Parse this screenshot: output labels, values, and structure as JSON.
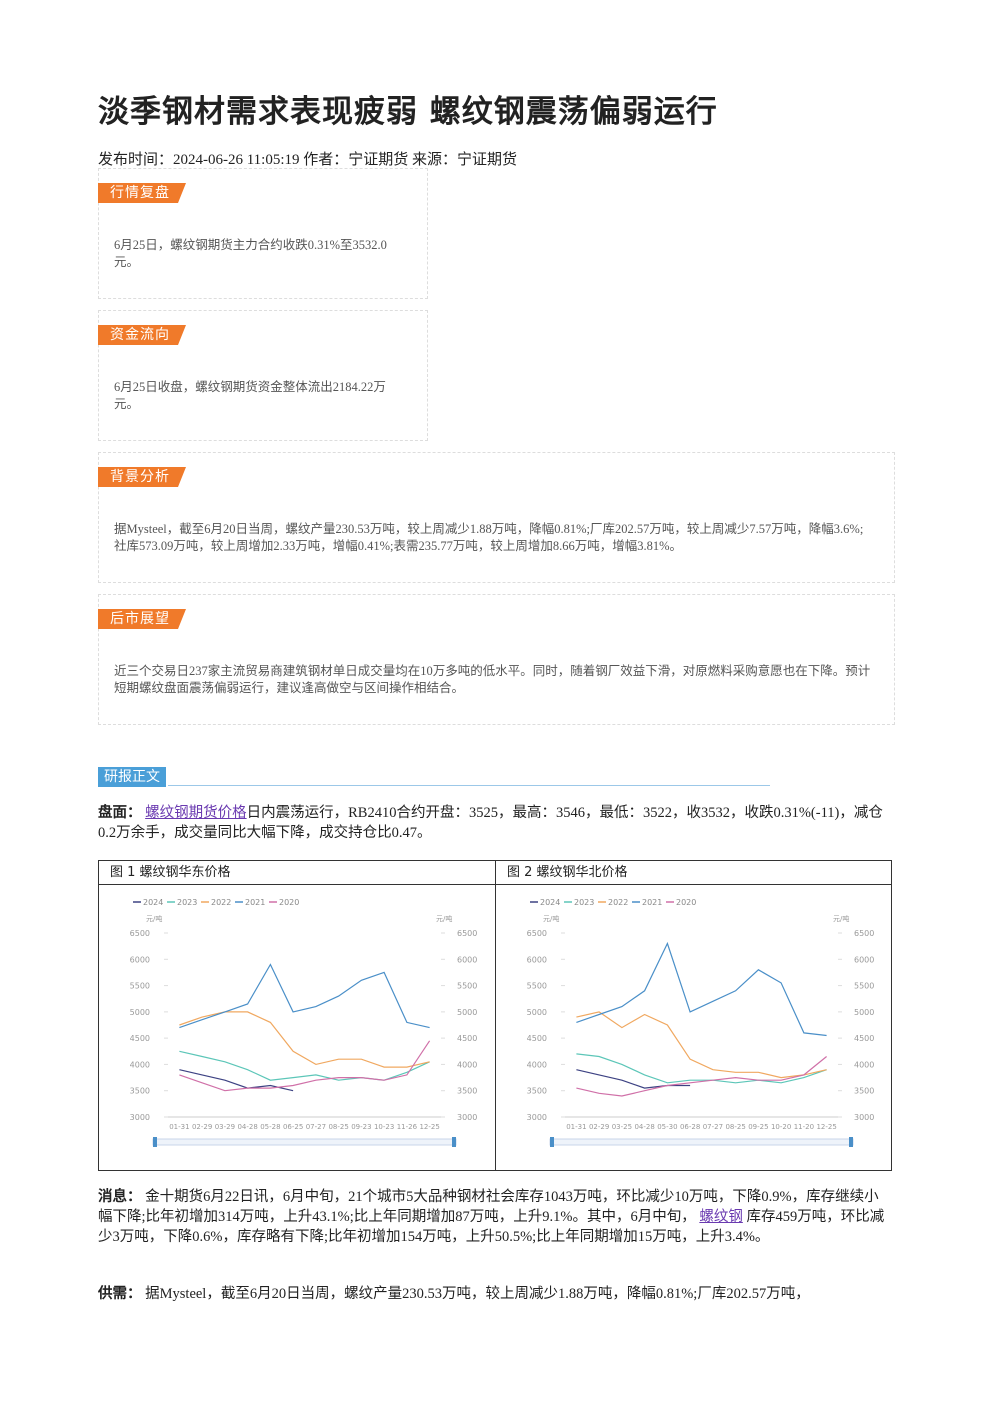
{
  "header": {
    "title": "淡季钢材需求表现疲弱 螺纹钢震荡偏弱运行",
    "meta": "发布时间：2024-06-26 11:05:19 作者：宁证期货 来源：宁证期货"
  },
  "boxes": [
    {
      "tag": "行情复盘",
      "text": "6月25日，螺纹钢期货主力合约收跌0.31%至3532.0元。"
    },
    {
      "tag": "资金流向",
      "text": "6月25日收盘，螺纹钢期货资金整体流出2184.22万元。"
    },
    {
      "tag": "背景分析",
      "text": "据Mysteel，截至6月20日当周，螺纹产量230.53万吨，较上周减少1.88万吨，降幅0.81%;厂库202.57万吨，较上周减少7.57万吨，降幅3.6%;社库573.09万吨，较上周增加2.33万吨，增幅0.41%;表需235.77万吨，较上周增加8.66万吨，增幅3.81%。"
    },
    {
      "tag": "后市展望",
      "text": "近三个交易日237家主流贸易商建筑钢材单日成交量均在10万多吨的低水平。同时，随着钢厂效益下滑，对原燃料采购意愿也在下降。预计短期螺纹盘面震荡偏弱运行，建议逢高做空与区间操作相结合。"
    }
  ],
  "section": {
    "tag": "研报正文"
  },
  "paragraphs": [
    {
      "label": "盘面：",
      "link": "螺纹钢期货价格",
      "after": "日内震荡运行，RB2410合约开盘：3525，最高：3546，最低：3522，收3532，收跌0.31%(-11)，减仓0.2万余手，成交量同比大幅下降，成交持仓比0.47。"
    },
    {
      "label": "消息：",
      "before": "金十期货6月22日讯，6月中旬，21个城市5大品种钢材社会库存1043万吨，环比减少10万吨，下降0.9%，库存继续小幅下降;比年初增加314万吨，上升43.1%;比上年同期增加87万吨，上升9.1%。其中，6月中旬，",
      "link": "螺纹钢",
      "after": "库存459万吨，环比减少3万吨，下降0.6%，库存略有下降;比年初增加154万吨，上升50.5%;比上年同期增加15万吨，上升3.4%。"
    },
    {
      "label": "供需：",
      "before": "据Mysteel，截至6月20日当周，螺纹产量230.53万吨，较上周减少1.88万吨，降幅0.81%;厂库202.57万吨，"
    }
  ],
  "chart_data": [
    {
      "type": "line",
      "title": "图 1 螺纹钢华东价格",
      "ylabel": "元/吨",
      "y2label": "元/吨",
      "categories": [
        "01-31",
        "02-29",
        "03-29",
        "04-28",
        "05-28",
        "06-25",
        "07-27",
        "08-25",
        "09-23",
        "10-23",
        "11-26",
        "12-25"
      ],
      "ylim": [
        3000,
        6500
      ],
      "yticks": [
        3000,
        3500,
        4000,
        4500,
        5000,
        5500,
        6000,
        6500
      ],
      "y2lim": [
        3000,
        6500
      ],
      "y2ticks": [
        3000,
        3500,
        4000,
        4500,
        5000,
        5500,
        6000,
        6500
      ],
      "series": [
        {
          "name": "2024",
          "color": "#3d4283",
          "values": [
            3900,
            3800,
            3700,
            3550,
            3600,
            3500,
            null,
            null,
            null,
            null,
            null,
            null
          ]
        },
        {
          "name": "2023",
          "color": "#5cc6b8",
          "values": [
            4250,
            4150,
            4050,
            3900,
            3700,
            3750,
            3800,
            3700,
            3750,
            3700,
            3850,
            4050
          ]
        },
        {
          "name": "2022",
          "color": "#f0a860",
          "values": [
            4750,
            4900,
            5000,
            5000,
            4800,
            4250,
            4000,
            4100,
            4100,
            3950,
            3950,
            4050
          ]
        },
        {
          "name": "2021",
          "color": "#4a8fc8",
          "values": [
            4700,
            4850,
            5000,
            5150,
            5900,
            5000,
            5100,
            5300,
            5600,
            5750,
            4800,
            4700
          ]
        },
        {
          "name": "2020",
          "color": "#d070a8",
          "values": [
            3800,
            3650,
            3500,
            3550,
            3550,
            3600,
            3700,
            3750,
            3750,
            3700,
            3800,
            4450
          ]
        }
      ]
    },
    {
      "type": "line",
      "title": "图 2 螺纹钢华北价格",
      "ylabel": "元/吨",
      "y2label": "元/吨",
      "categories": [
        "01-31",
        "02-29",
        "03-25",
        "04-28",
        "05-30",
        "06-28",
        "07-27",
        "08-25",
        "09-25",
        "10-20",
        "11-20",
        "12-25"
      ],
      "ylim": [
        3000,
        6500
      ],
      "yticks": [
        3000,
        3500,
        4000,
        4500,
        5000,
        5500,
        6000,
        6500
      ],
      "y2lim": [
        3000,
        6500
      ],
      "y2ticks": [
        3000,
        3500,
        4000,
        4500,
        5000,
        5500,
        6000,
        6500
      ],
      "series": [
        {
          "name": "2024",
          "color": "#3d4283",
          "values": [
            3900,
            3800,
            3700,
            3550,
            3600,
            3600,
            null,
            null,
            null,
            null,
            null,
            null
          ]
        },
        {
          "name": "2023",
          "color": "#5cc6b8",
          "values": [
            4200,
            4150,
            4000,
            3800,
            3650,
            3700,
            3700,
            3650,
            3700,
            3650,
            3750,
            3900
          ]
        },
        {
          "name": "2022",
          "color": "#f0a860",
          "values": [
            4900,
            5000,
            4700,
            4950,
            4750,
            4100,
            3900,
            3850,
            3850,
            3750,
            3800,
            3900
          ]
        },
        {
          "name": "2021",
          "color": "#4a8fc8",
          "values": [
            4800,
            4950,
            5100,
            5400,
            6300,
            5000,
            5200,
            5400,
            5800,
            5550,
            4600,
            4550
          ]
        },
        {
          "name": "2020",
          "color": "#d070a8",
          "values": [
            3550,
            3450,
            3400,
            3500,
            3600,
            3650,
            3700,
            3750,
            3700,
            3700,
            3800,
            4150
          ]
        }
      ]
    }
  ]
}
